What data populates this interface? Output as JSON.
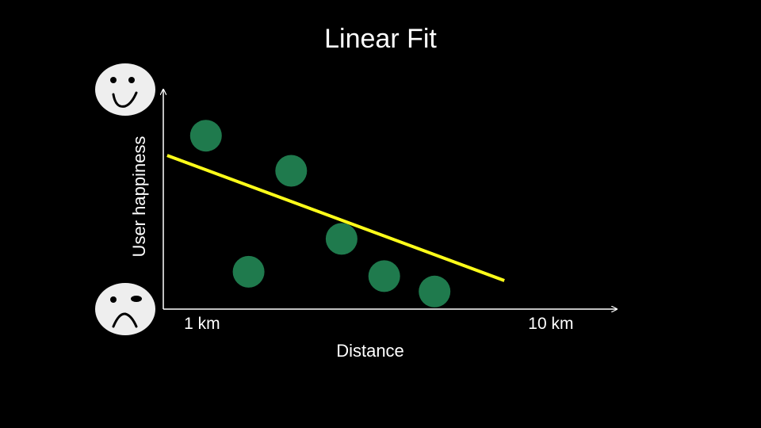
{
  "slide": {
    "title": "Linear Fit"
  },
  "colors": {
    "background": "#000000",
    "point": "#1f7a4d",
    "fit_line": "#ffff1a",
    "axis": "#ffffff",
    "face": "#eeeeee"
  },
  "icons": {
    "y_top": "smiley-face-icon",
    "y_bottom": "frowny-face-icon"
  },
  "chart_data": {
    "type": "scatter",
    "title": "Linear Fit",
    "xlabel": "Distance",
    "ylabel": "User happiness",
    "x_tick_labels": [
      {
        "value": 1,
        "label": "1 km"
      },
      {
        "value": 10,
        "label": "10 km"
      }
    ],
    "xlim": [
      0,
      11.7
    ],
    "ylim": [
      0,
      1
    ],
    "grid": false,
    "points": [
      {
        "x": 1.1,
        "y": 0.79
      },
      {
        "x": 2.2,
        "y": 0.17
      },
      {
        "x": 3.3,
        "y": 0.63
      },
      {
        "x": 4.6,
        "y": 0.32
      },
      {
        "x": 5.7,
        "y": 0.15
      },
      {
        "x": 7.0,
        "y": 0.08
      }
    ],
    "fit_line": {
      "x": [
        0.1,
        8.8
      ],
      "y": [
        0.7,
        0.13
      ]
    }
  }
}
